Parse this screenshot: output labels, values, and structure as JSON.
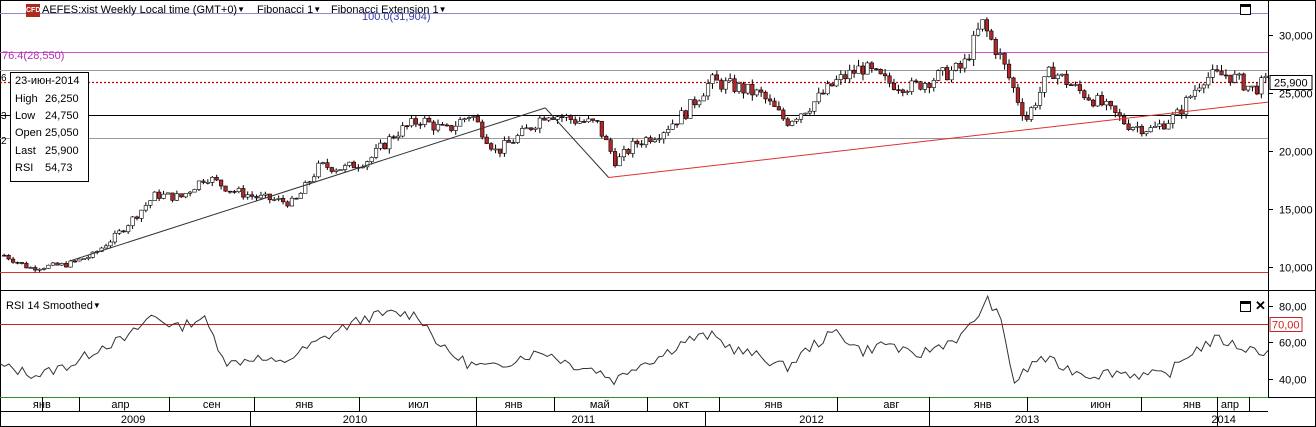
{
  "header": {
    "symbol_title": "AEFES:xist Weekly Local time (GMT+0)",
    "indicator_1": "Fibonacci 1",
    "indicator_2": "Fibonacci Extension 1",
    "icon": "cfd-icon"
  },
  "fib_labels": {
    "top": "100.0(31,904)",
    "mid": "76.4(28,550)"
  },
  "left_edge_ticks": [
    "6",
    "3",
    "2"
  ],
  "infobox": {
    "date": "23-июн-2014",
    "rows": [
      {
        "label": "High",
        "value": "26,250"
      },
      {
        "label": "Low",
        "value": "24,750"
      },
      {
        "label": "Open",
        "value": "25,050"
      },
      {
        "label": "Last",
        "value": "25,900"
      },
      {
        "label": "RSI",
        "value": "54,73"
      }
    ]
  },
  "rsi_panel": {
    "title": "RSI 14 Smoothed",
    "overbought_label": "70,00",
    "current": 54.73
  },
  "colors": {
    "bull": "#ffffff",
    "bear": "#b0282a",
    "fib_line": "#8a8ad8",
    "fib_mid": "#d050d0",
    "trend_red": "#e03030",
    "last_price": "#cc0000",
    "rsi_70": "#cc2222",
    "rsi_30": "#2f8f2f"
  },
  "chart_data": {
    "type": "candlestick",
    "timeframe": "Weekly",
    "y_axis": {
      "range": [
        8000,
        33000
      ],
      "ticks": [
        10000,
        15000,
        20000,
        25000,
        30000
      ],
      "tick_labels": [
        "10,000",
        "15,000",
        "20,000",
        "25,000",
        "30,000"
      ]
    },
    "last_price": {
      "value": 25900,
      "label": "25,900"
    },
    "horizontal_levels": [
      {
        "value": 31904,
        "style": "fib"
      },
      {
        "value": 28550,
        "style": "fib-mid"
      },
      {
        "value": 27000,
        "style": "gray"
      },
      {
        "value": 23050,
        "style": "black"
      },
      {
        "value": 21100,
        "style": "gray"
      },
      {
        "value": 9550,
        "style": "red"
      }
    ],
    "trend_lines": [
      {
        "from": [
          0.055,
          10500
        ],
        "to": [
          0.43,
          23700
        ],
        "color": "black"
      },
      {
        "from": [
          0.43,
          23700
        ],
        "to": [
          0.48,
          17700
        ],
        "color": "black"
      },
      {
        "from": [
          0.48,
          17700
        ],
        "to": [
          1.0,
          24200
        ],
        "color": "red"
      }
    ],
    "price_anchors": [
      [
        0.0,
        11000
      ],
      [
        0.02,
        9900
      ],
      [
        0.05,
        10200
      ],
      [
        0.07,
        11000
      ],
      [
        0.09,
        12800
      ],
      [
        0.12,
        16200
      ],
      [
        0.14,
        16000
      ],
      [
        0.16,
        17800
      ],
      [
        0.18,
        16600
      ],
      [
        0.2,
        16000
      ],
      [
        0.23,
        15500
      ],
      [
        0.25,
        18700
      ],
      [
        0.27,
        18500
      ],
      [
        0.29,
        19300
      ],
      [
        0.31,
        21500
      ],
      [
        0.33,
        22700
      ],
      [
        0.35,
        21700
      ],
      [
        0.37,
        23200
      ],
      [
        0.39,
        19900
      ],
      [
        0.41,
        21400
      ],
      [
        0.43,
        23300
      ],
      [
        0.45,
        22700
      ],
      [
        0.47,
        22300
      ],
      [
        0.485,
        19000
      ],
      [
        0.5,
        20600
      ],
      [
        0.52,
        21600
      ],
      [
        0.54,
        23300
      ],
      [
        0.56,
        26000
      ],
      [
        0.58,
        25500
      ],
      [
        0.6,
        24800
      ],
      [
        0.62,
        22500
      ],
      [
        0.64,
        24000
      ],
      [
        0.66,
        26000
      ],
      [
        0.68,
        27200
      ],
      [
        0.7,
        25900
      ],
      [
        0.72,
        25500
      ],
      [
        0.74,
        26400
      ],
      [
        0.76,
        27200
      ],
      [
        0.775,
        31000
      ],
      [
        0.79,
        28000
      ],
      [
        0.81,
        22700
      ],
      [
        0.83,
        27000
      ],
      [
        0.85,
        25300
      ],
      [
        0.87,
        24000
      ],
      [
        0.89,
        22300
      ],
      [
        0.91,
        21800
      ],
      [
        0.93,
        23100
      ],
      [
        0.95,
        26300
      ],
      [
        0.97,
        26600
      ],
      [
        0.99,
        25300
      ],
      [
        1.0,
        25900
      ]
    ],
    "rsi": {
      "range": [
        30,
        85
      ],
      "ticks": [
        40,
        60,
        80
      ],
      "tick_labels": [
        "40,00",
        "60,00",
        "80,00"
      ],
      "levels": [
        70,
        30
      ],
      "anchors": [
        [
          0.0,
          47
        ],
        [
          0.03,
          42
        ],
        [
          0.06,
          49
        ],
        [
          0.08,
          58
        ],
        [
          0.1,
          62
        ],
        [
          0.12,
          75
        ],
        [
          0.14,
          68
        ],
        [
          0.16,
          74
        ],
        [
          0.18,
          48
        ],
        [
          0.2,
          52
        ],
        [
          0.22,
          48
        ],
        [
          0.25,
          60
        ],
        [
          0.27,
          68
        ],
        [
          0.29,
          74
        ],
        [
          0.31,
          76
        ],
        [
          0.33,
          75
        ],
        [
          0.35,
          56
        ],
        [
          0.37,
          48
        ],
        [
          0.39,
          46
        ],
        [
          0.41,
          52
        ],
        [
          0.43,
          55
        ],
        [
          0.45,
          48
        ],
        [
          0.47,
          45
        ],
        [
          0.485,
          39
        ],
        [
          0.5,
          47
        ],
        [
          0.52,
          52
        ],
        [
          0.54,
          61
        ],
        [
          0.56,
          64
        ],
        [
          0.58,
          56
        ],
        [
          0.6,
          52
        ],
        [
          0.62,
          46
        ],
        [
          0.64,
          58
        ],
        [
          0.66,
          66
        ],
        [
          0.68,
          55
        ],
        [
          0.7,
          60
        ],
        [
          0.72,
          52
        ],
        [
          0.74,
          58
        ],
        [
          0.76,
          64
        ],
        [
          0.78,
          84
        ],
        [
          0.79,
          70
        ],
        [
          0.8,
          38
        ],
        [
          0.82,
          52
        ],
        [
          0.84,
          46
        ],
        [
          0.86,
          42
        ],
        [
          0.88,
          44
        ],
        [
          0.9,
          42
        ],
        [
          0.92,
          42
        ],
        [
          0.94,
          55
        ],
        [
          0.96,
          62
        ],
        [
          0.98,
          57
        ],
        [
          1.0,
          54.73
        ]
      ]
    },
    "x_axis": {
      "months": [
        {
          "label": "янв",
          "pos": 0.033
        },
        {
          "label": "апр",
          "pos": 0.095
        },
        {
          "label": "сен",
          "pos": 0.167
        },
        {
          "label": "янв",
          "pos": 0.24
        },
        {
          "label": "июл",
          "pos": 0.33
        },
        {
          "label": "янв",
          "pos": 0.405
        },
        {
          "label": "май",
          "pos": 0.473
        },
        {
          "label": "окт",
          "pos": 0.537
        },
        {
          "label": "янв",
          "pos": 0.61
        },
        {
          "label": "авг",
          "pos": 0.703
        },
        {
          "label": "янв",
          "pos": 0.775
        },
        {
          "label": "июн",
          "pos": 0.868
        },
        {
          "label": "янв",
          "pos": 0.94
        },
        {
          "label": "апр",
          "pos": 0.97
        }
      ],
      "month_ticks": [
        0.033,
        0.062,
        0.133,
        0.2,
        0.283,
        0.375,
        0.437,
        0.51,
        0.567,
        0.66,
        0.733,
        0.81,
        0.9,
        0.96,
        0.985
      ],
      "years": [
        {
          "label": "2009",
          "pos": 0.105
        },
        {
          "label": "2010",
          "pos": 0.28
        },
        {
          "label": "2011",
          "pos": 0.46
        },
        {
          "label": "2012",
          "pos": 0.64
        },
        {
          "label": "2013",
          "pos": 0.81
        },
        {
          "label": "2014",
          "pos": 0.965
        }
      ],
      "year_ticks": [
        0.197,
        0.375,
        0.556,
        0.733,
        0.96
      ]
    }
  }
}
